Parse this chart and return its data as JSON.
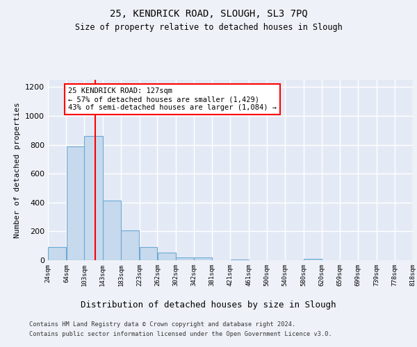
{
  "title1": "25, KENDRICK ROAD, SLOUGH, SL3 7PQ",
  "title2": "Size of property relative to detached houses in Slough",
  "xlabel": "Distribution of detached houses by size in Slough",
  "ylabel": "Number of detached properties",
  "annotation_line1": "25 KENDRICK ROAD: 127sqm",
  "annotation_line2": "← 57% of detached houses are smaller (1,429)",
  "annotation_line3": "43% of semi-detached houses are larger (1,084) →",
  "footer1": "Contains HM Land Registry data © Crown copyright and database right 2024.",
  "footer2": "Contains public sector information licensed under the Open Government Licence v3.0.",
  "bar_edges": [
    24,
    64,
    103,
    143,
    183,
    223,
    262,
    302,
    342,
    381,
    421,
    461,
    500,
    540,
    580,
    620,
    659,
    699,
    739,
    778,
    818
  ],
  "bar_heights": [
    90,
    790,
    860,
    415,
    205,
    90,
    55,
    18,
    18,
    0,
    5,
    0,
    0,
    0,
    10,
    0,
    0,
    0,
    0,
    0
  ],
  "bar_color": "#c7d9ed",
  "bar_edge_color": "#6aaad4",
  "red_line_x": 127,
  "ylim": [
    0,
    1250
  ],
  "yticks": [
    0,
    200,
    400,
    600,
    800,
    1000,
    1200
  ],
  "background_color": "#eef2f8",
  "plot_bg_color": "#e4eaf5",
  "grid_color": "#ffffff",
  "tick_labels": [
    "24sqm",
    "64sqm",
    "103sqm",
    "143sqm",
    "183sqm",
    "223sqm",
    "262sqm",
    "302sqm",
    "342sqm",
    "381sqm",
    "421sqm",
    "461sqm",
    "500sqm",
    "540sqm",
    "580sqm",
    "620sqm",
    "659sqm",
    "699sqm",
    "739sqm",
    "778sqm",
    "818sqm"
  ]
}
